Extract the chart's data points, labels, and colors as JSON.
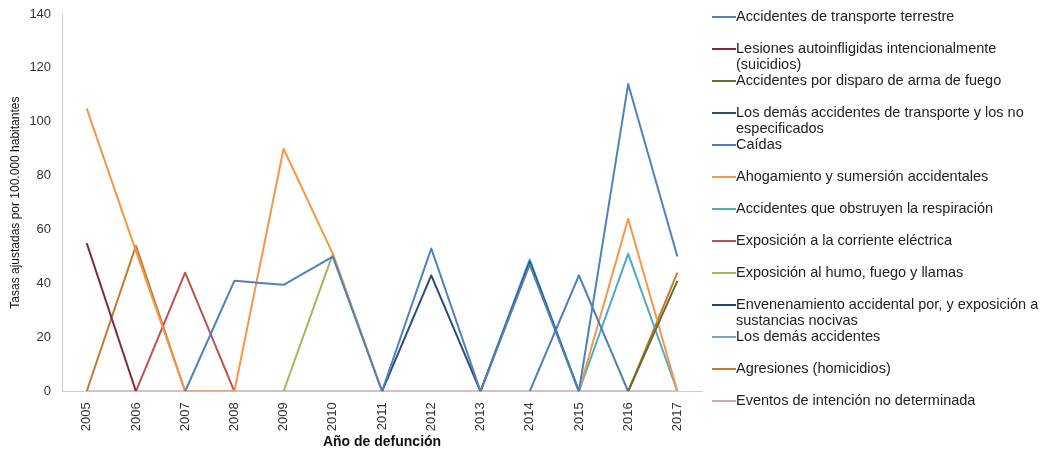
{
  "chart_data": {
    "type": "line",
    "xlabel": "Año de defunción",
    "ylabel": "Tasas ajustadas por 100.000 habitantes",
    "categories": [
      "2005",
      "2006",
      "2007",
      "2008",
      "2009",
      "2010",
      "2011",
      "2012",
      "2013",
      "2014",
      "2015",
      "2016",
      "2017"
    ],
    "ylim": [
      0,
      140
    ],
    "yticks": [
      0,
      20,
      40,
      60,
      80,
      100,
      120,
      140
    ],
    "grid": false,
    "legend": "right",
    "marker": "none",
    "series": [
      {
        "name": "Accidentes de transporte terrestre",
        "color": "#4f81bd",
        "values": [
          null,
          null,
          0,
          41,
          39.5,
          50,
          0,
          53,
          0,
          47,
          0,
          114,
          50
        ]
      },
      {
        "name": "Lesiones autoinfligidas intencionalmente (suicidios)",
        "color": "#7f2a3c",
        "values": [
          55,
          0,
          null,
          null,
          null,
          null,
          null,
          null,
          null,
          null,
          null,
          null,
          null
        ]
      },
      {
        "name": "Accidentes por disparo de arma de fuego",
        "color": "#6b6b2a",
        "values": [
          null,
          null,
          null,
          null,
          null,
          null,
          null,
          null,
          null,
          null,
          null,
          0,
          41
        ]
      },
      {
        "name": "Los demás accidentes de transporte y los no especificados",
        "color": "#2c4d75",
        "values": [
          null,
          null,
          null,
          null,
          null,
          null,
          0,
          43,
          0,
          48,
          0,
          null,
          null
        ]
      },
      {
        "name": "Caídas",
        "color": "#4a7ebb",
        "values": [
          null,
          null,
          null,
          null,
          null,
          null,
          null,
          null,
          null,
          0,
          43,
          0,
          null
        ]
      },
      {
        "name": "Ahogamiento y sumersión accidentales",
        "color": "#f79646",
        "values": [
          105,
          52,
          0,
          0,
          90,
          51,
          0,
          null,
          null,
          null,
          0,
          64,
          0
        ]
      },
      {
        "name": "Accidentes que obstruyen la respiración",
        "color": "#4bacc6",
        "values": [
          null,
          null,
          null,
          null,
          null,
          null,
          null,
          null,
          0,
          49,
          0,
          51,
          0
        ]
      },
      {
        "name": "Exposición a la corriente eléctrica",
        "color": "#c0504d",
        "values": [
          null,
          0,
          44,
          0,
          null,
          null,
          null,
          null,
          null,
          null,
          null,
          null,
          null
        ]
      },
      {
        "name": "Exposición al humo, fuego y llamas",
        "color": "#9bbb59",
        "values": [
          null,
          null,
          null,
          null,
          0,
          51,
          0,
          null,
          null,
          null,
          null,
          null,
          null
        ]
      },
      {
        "name": "Envenenamiento accidental por, y exposición a sustancias nocivas",
        "color": "#1f497d",
        "values": [
          null,
          null,
          null,
          null,
          null,
          null,
          null,
          null,
          null,
          null,
          null,
          null,
          null
        ]
      },
      {
        "name": "Los demás accidentes",
        "color": "#7ba0cd",
        "values": [
          null,
          null,
          null,
          null,
          null,
          null,
          null,
          null,
          null,
          null,
          null,
          null,
          null
        ]
      },
      {
        "name": "Agresiones (homicidios)",
        "color": "#c47a2c",
        "values": [
          0,
          54,
          0,
          null,
          null,
          null,
          null,
          null,
          null,
          null,
          null,
          0,
          44
        ]
      },
      {
        "name": "Eventos de intención no determinada",
        "color": "#e0a0b8",
        "values": [
          0,
          0,
          0,
          0,
          0,
          0,
          0,
          0,
          0,
          0,
          0,
          0,
          0
        ]
      }
    ]
  }
}
